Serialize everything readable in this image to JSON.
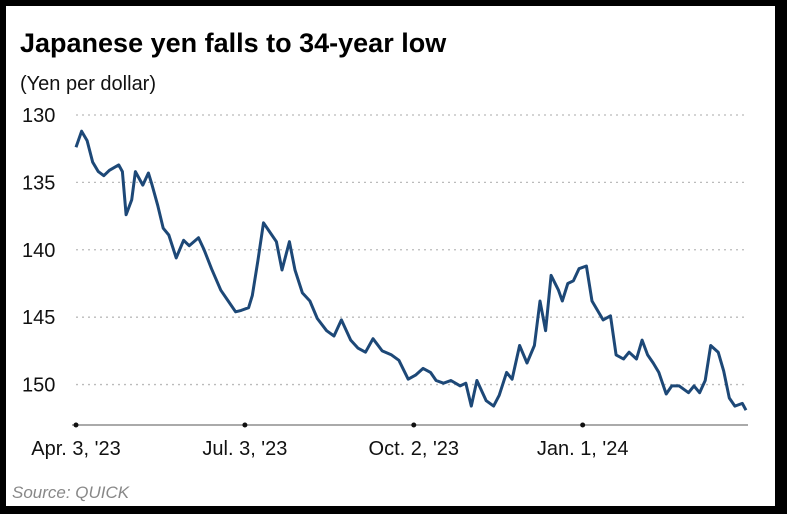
{
  "chart_data": {
    "type": "line",
    "title": "Japanese yen falls to 34-year low",
    "subtitle": "(Yen per dollar)",
    "source": "Source: QUICK",
    "x": [
      "2023-04-03",
      "2023-04-06",
      "2023-04-09",
      "2023-04-12",
      "2023-04-15",
      "2023-04-18",
      "2023-04-21",
      "2023-04-26",
      "2023-04-28",
      "2023-04-30",
      "2023-05-03",
      "2023-05-05",
      "2023-05-09",
      "2023-05-12",
      "2023-05-14",
      "2023-05-17",
      "2023-05-20",
      "2023-05-23",
      "2023-05-27",
      "2023-05-31",
      "2023-06-03",
      "2023-06-08",
      "2023-06-11",
      "2023-06-15",
      "2023-06-20",
      "2023-06-24",
      "2023-06-28",
      "2023-07-01",
      "2023-07-05",
      "2023-07-07",
      "2023-07-10",
      "2023-07-13",
      "2023-07-16",
      "2023-07-20",
      "2023-07-23",
      "2023-07-27",
      "2023-07-30",
      "2023-08-03",
      "2023-08-07",
      "2023-08-11",
      "2023-08-16",
      "2023-08-20",
      "2023-08-24",
      "2023-08-29",
      "2023-09-02",
      "2023-09-06",
      "2023-09-10",
      "2023-09-15",
      "2023-09-20",
      "2023-09-24",
      "2023-09-29",
      "2023-10-03",
      "2023-10-07",
      "2023-10-11",
      "2023-10-14",
      "2023-10-18",
      "2023-10-22",
      "2023-10-27",
      "2023-10-30",
      "2023-11-02",
      "2023-11-05",
      "2023-11-10",
      "2023-11-14",
      "2023-11-17",
      "2023-11-21",
      "2023-11-24",
      "2023-11-28",
      "2023-12-02",
      "2023-12-06",
      "2023-12-09",
      "2023-12-12",
      "2023-12-15",
      "2023-12-19",
      "2023-12-21",
      "2023-12-24",
      "2023-12-27",
      "2023-12-30",
      "2024-01-03",
      "2024-01-06",
      "2024-01-09",
      "2024-01-12",
      "2024-01-16",
      "2024-01-19",
      "2024-01-23",
      "2024-01-26",
      "2024-01-30",
      "2024-02-02",
      "2024-02-05",
      "2024-02-08",
      "2024-02-11",
      "2024-02-15",
      "2024-02-18",
      "2024-02-22",
      "2024-02-27",
      "2024-03-01",
      "2024-03-04",
      "2024-03-07",
      "2024-03-10",
      "2024-03-14",
      "2024-03-17",
      "2024-03-20",
      "2024-03-23",
      "2024-03-27",
      "2024-03-29"
    ],
    "series": [
      {
        "name": "Yen per dollar",
        "color": "#1d4877",
        "values": [
          132.4,
          131.2,
          131.9,
          133.5,
          134.2,
          134.5,
          134.1,
          133.7,
          134.2,
          137.4,
          136.3,
          134.2,
          135.2,
          134.3,
          135.2,
          136.7,
          138.4,
          138.9,
          140.6,
          139.3,
          139.7,
          139.1,
          140.0,
          141.4,
          143.0,
          143.8,
          144.6,
          144.5,
          144.3,
          143.4,
          140.8,
          138.0,
          138.6,
          139.4,
          141.5,
          139.4,
          141.5,
          143.2,
          143.8,
          145.1,
          146.0,
          146.4,
          145.2,
          146.7,
          147.3,
          147.6,
          146.6,
          147.5,
          147.8,
          148.2,
          149.6,
          149.3,
          148.8,
          149.1,
          149.7,
          149.9,
          149.7,
          150.1,
          149.9,
          151.6,
          149.7,
          151.2,
          151.6,
          150.8,
          149.1,
          149.6,
          147.1,
          148.4,
          147.1,
          143.8,
          146.0,
          141.9,
          143.0,
          143.8,
          142.5,
          142.3,
          141.4,
          141.2,
          143.8,
          144.5,
          145.2,
          144.9,
          147.8,
          148.1,
          147.6,
          148.1,
          146.7,
          147.8,
          148.4,
          149.1,
          150.7,
          150.1,
          150.1,
          150.6,
          150.1,
          150.6,
          149.7,
          147.1,
          147.6,
          149.0,
          151.0,
          151.6,
          151.4,
          151.9
        ]
      }
    ],
    "xlim": [
      "2023-04-03",
      "2024-03-29"
    ],
    "xticks": [
      {
        "value": "2023-04-03",
        "label": "Apr. 3, '23"
      },
      {
        "value": "2023-07-03",
        "label": "Jul. 3, '23"
      },
      {
        "value": "2023-10-02",
        "label": "Oct. 2, '23"
      },
      {
        "value": "2024-01-01",
        "label": "Jan. 1, '24"
      }
    ],
    "ylim": [
      130,
      153
    ],
    "y_inverted": true,
    "yticks": [
      130,
      135,
      140,
      145,
      150
    ],
    "grid": true
  }
}
